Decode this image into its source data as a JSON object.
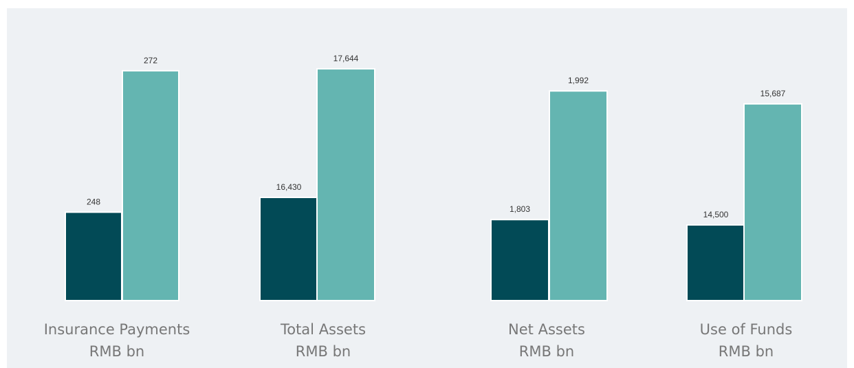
{
  "chart_data": [
    {
      "type": "bar",
      "title": "Insurance Payments",
      "subtitle": "RMB bn",
      "values": [
        248,
        272
      ],
      "value_labels": [
        "248",
        "272"
      ],
      "colors": [
        "#024a56",
        "#64b5b1"
      ],
      "ylim": [
        233,
        277
      ]
    },
    {
      "type": "bar",
      "title": "Total Assets",
      "subtitle": "RMB bn",
      "values": [
        16430,
        17644
      ],
      "value_labels": [
        "16,430",
        "17,644"
      ],
      "colors": [
        "#024a56",
        "#64b5b1"
      ],
      "ylim": [
        15456,
        17904
      ]
    },
    {
      "type": "bar",
      "title": "Net Assets",
      "subtitle": "RMB bn",
      "values": [
        1803,
        1992
      ],
      "value_labels": [
        "1,803",
        "1,992"
      ],
      "colors": [
        "#024a56",
        "#64b5b1"
      ],
      "ylim": [
        1684,
        2065
      ]
    },
    {
      "type": "bar",
      "title": "Use of Funds",
      "subtitle": "RMB bn",
      "values": [
        14500,
        15687
      ],
      "value_labels": [
        "14,500",
        "15,687"
      ],
      "colors": [
        "#024a56",
        "#64b5b1"
      ],
      "ylim": [
        13758,
        16301
      ]
    }
  ]
}
